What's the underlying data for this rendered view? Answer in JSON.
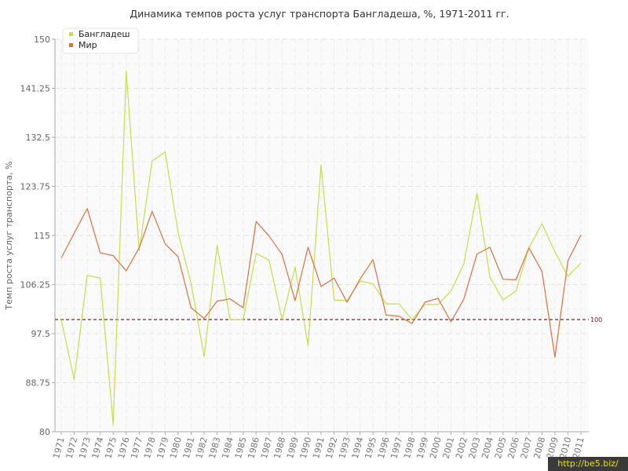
{
  "chart_data": {
    "type": "line",
    "title": "Динамика темпов роста услуг транспорта Бангладеша, %, 1971-2011 гг.",
    "ylabel": "Темп роста услуг транспорта, %",
    "ylim": [
      80,
      150
    ],
    "yticks": [
      "150",
      "141.25",
      "132.5",
      "123.75",
      "115",
      "106.25",
      "97.5",
      "88.75",
      "80"
    ],
    "x": [
      "1971",
      "1972",
      "1973",
      "1974",
      "1975",
      "1976",
      "1977",
      "1978",
      "1979",
      "1980",
      "1981",
      "1982",
      "1983",
      "1984",
      "1985",
      "1986",
      "1987",
      "1988",
      "1989",
      "1990",
      "1991",
      "1992",
      "1993",
      "1994",
      "1995",
      "1996",
      "1997",
      "1998",
      "1999",
      "2000",
      "2001",
      "2002",
      "2003",
      "2004",
      "2005",
      "2006",
      "2007",
      "2008",
      "2009",
      "2010",
      "2011"
    ],
    "series": [
      {
        "name": "Бангладеш",
        "color": "#c3e04a",
        "values": [
          100,
          89.3,
          107.9,
          107.4,
          81.3,
          144.3,
          112.3,
          128.3,
          129.9,
          115.5,
          106.4,
          93.4,
          113.2,
          100,
          100,
          111.8,
          110.6,
          100,
          109.4,
          95.4,
          127.6,
          103.5,
          103.4,
          106.9,
          106.4,
          102.8,
          102.8,
          100,
          102.7,
          102.7,
          105.1,
          110,
          122.5,
          107.6,
          103.5,
          105.1,
          112.8,
          117.1,
          112.1,
          107.7,
          110.1
        ]
      },
      {
        "name": "Мир",
        "color": "#e07040",
        "values": [
          111,
          115.4,
          119.8,
          111.9,
          111.4,
          108.7,
          112.8,
          119.3,
          113.5,
          111.2,
          102.1,
          100.2,
          103.3,
          103.7,
          102.1,
          117.5,
          114.9,
          111.6,
          103.4,
          112.9,
          105.9,
          107.4,
          103.1,
          107.2,
          110.7,
          100.8,
          100.6,
          99.3,
          103.1,
          103.8,
          99.6,
          103.7,
          111.7,
          112.9,
          107.2,
          107.1,
          112.8,
          108.6,
          93.3,
          110.5,
          115.1
        ]
      }
    ],
    "reference_line": {
      "value": 100,
      "label": "100",
      "color": "#8b1a2a"
    },
    "legend_position": "top-left",
    "grid": true
  },
  "watermark": "http://be5.biz/"
}
